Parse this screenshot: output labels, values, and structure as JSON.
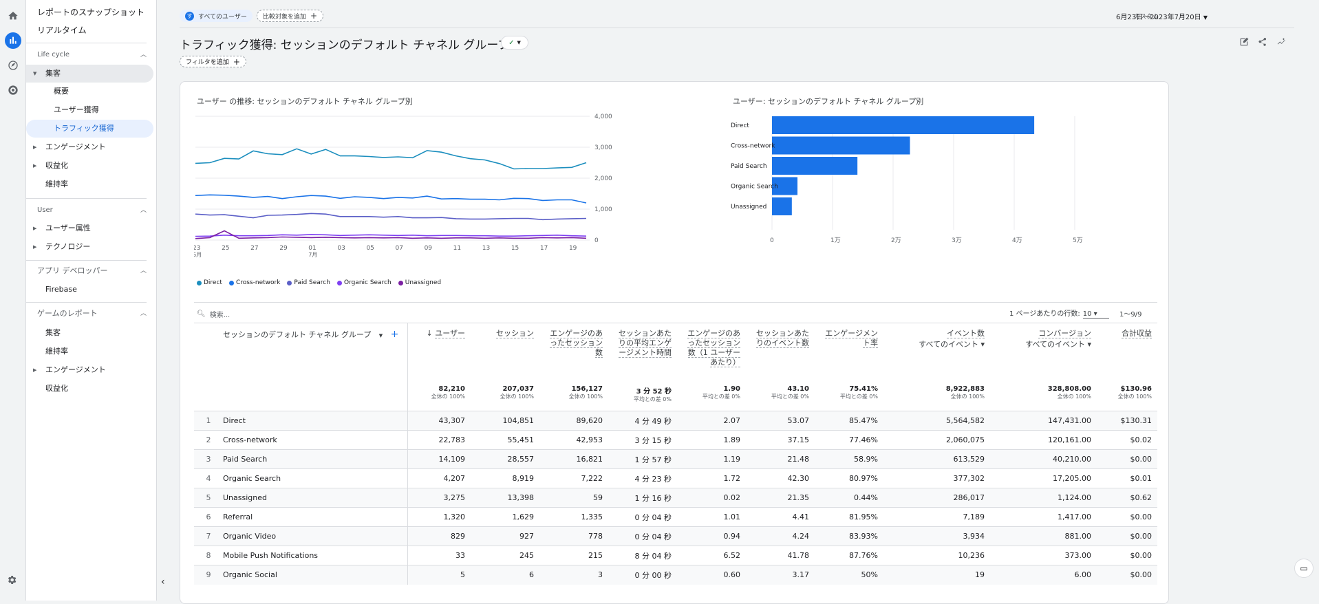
{
  "rail": {
    "icons": [
      "home-icon",
      "reports-icon",
      "explore-icon",
      "advertising-icon"
    ],
    "settings_icon": "gear-icon"
  },
  "sidebar": {
    "top_items": [
      "レポートのスナップショット",
      "リアルタイム"
    ],
    "lifecycle": {
      "title": "Life cycle",
      "acquisition": "集客",
      "sub": [
        "概要",
        "ユーザー獲得",
        "トラフィック獲得"
      ],
      "others": [
        "エンゲージメント",
        "収益化"
      ],
      "retention": "維持率"
    },
    "user": {
      "title": "User",
      "items": [
        "ユーザー属性",
        "テクノロジー"
      ]
    },
    "app_dev": {
      "title": "アプリ デベロッパー",
      "items": [
        "Firebase"
      ]
    },
    "games": {
      "title": "ゲームのレポート",
      "items": [
        "集客",
        "維持率",
        "エンゲージメント",
        "収益化"
      ]
    }
  },
  "header": {
    "chip_users": "すべてのユーザー",
    "chip_users_avatar": "す",
    "chip_compare": "比較対象を追加",
    "date_label": "カスタム",
    "date_value": "6月23日～2023年7月20日",
    "title": "トラフィック獲得: セッションのデフォルト チャネル グループ",
    "filter": "フィルタを追加"
  },
  "charts": {
    "line_title": "ユーザー の推移: セッションのデフォルト チャネル グループ別",
    "bar_title": "ユーザー: セッションのデフォルト チャネル グループ別"
  },
  "chart_data": [
    {
      "type": "line",
      "x": [
        "23",
        "24",
        "25",
        "26",
        "27",
        "28",
        "29",
        "30",
        "01",
        "02",
        "03",
        "04",
        "05",
        "06",
        "07",
        "08",
        "09",
        "10",
        "11",
        "12",
        "13",
        "14",
        "15",
        "16",
        "17",
        "18",
        "19",
        "20"
      ],
      "x_tick_labels": [
        "23",
        "25",
        "27",
        "29",
        "01",
        "03",
        "05",
        "07",
        "09",
        "11",
        "13",
        "15",
        "17",
        "19"
      ],
      "x_tick_sublabels": {
        "23": "6月",
        "01": "7月"
      },
      "ylim": [
        0,
        4000
      ],
      "y_ticks": [
        "4,000",
        "3,000",
        "2,000",
        "1,000",
        "0"
      ],
      "series": [
        {
          "name": "Direct",
          "color": "#1b8ebe",
          "values": [
            2480,
            2500,
            2640,
            2620,
            2880,
            2790,
            2760,
            2950,
            2780,
            2930,
            2720,
            2720,
            2700,
            2670,
            2690,
            2660,
            2890,
            2840,
            2720,
            2630,
            2590,
            2470,
            2300,
            2310,
            2310,
            2330,
            2350,
            2500
          ]
        },
        {
          "name": "Cross-network",
          "color": "#1a73e8",
          "values": [
            1440,
            1460,
            1450,
            1420,
            1380,
            1410,
            1340,
            1400,
            1440,
            1420,
            1350,
            1400,
            1380,
            1340,
            1380,
            1360,
            1420,
            1330,
            1340,
            1320,
            1320,
            1300,
            1350,
            1340,
            1280,
            1300,
            1300,
            1200
          ]
        },
        {
          "name": "Paid Search",
          "color": "#5b5fc7",
          "values": [
            840,
            810,
            820,
            770,
            720,
            800,
            810,
            830,
            860,
            840,
            760,
            760,
            760,
            740,
            760,
            720,
            720,
            730,
            690,
            680,
            680,
            690,
            700,
            700,
            660,
            680,
            690,
            700
          ]
        },
        {
          "name": "Organic Search",
          "color": "#7e3ff2",
          "values": [
            120,
            130,
            160,
            140,
            140,
            150,
            170,
            160,
            180,
            170,
            150,
            160,
            170,
            160,
            150,
            160,
            140,
            150,
            150,
            140,
            140,
            130,
            130,
            140,
            150,
            160,
            140,
            130
          ]
        },
        {
          "name": "Unassigned",
          "color": "#7b1fa2",
          "values": [
            50,
            80,
            300,
            60,
            70,
            80,
            100,
            90,
            80,
            90,
            80,
            70,
            80,
            70,
            80,
            60,
            70,
            60,
            70,
            70,
            60,
            70,
            60,
            60,
            80,
            70,
            80,
            60
          ]
        }
      ]
    },
    {
      "type": "bar",
      "orientation": "horizontal",
      "categories": [
        "Direct",
        "Cross-network",
        "Paid Search",
        "Organic Search",
        "Unassigned"
      ],
      "values": [
        43307,
        22783,
        14109,
        4207,
        3275
      ],
      "xlim": [
        0,
        50000
      ],
      "x_ticks": [
        "0",
        "1万",
        "2万",
        "3万",
        "4万",
        "5万"
      ],
      "color": "#1a73e8",
      "grid": true
    }
  ],
  "table": {
    "search_placeholder": "検索...",
    "rows_per_page_label": "1 ページあたりの行数:",
    "rows_per_page": "10",
    "range": "1～9/9",
    "dimension_header": "セッションのデフォルト チャネル グループ",
    "columns": [
      {
        "label": "ユーザー",
        "sub": ""
      },
      {
        "label": "セッション",
        "sub": ""
      },
      {
        "label": "エンゲージのあったセッション数",
        "sub": ""
      },
      {
        "label": "セッションあたりの平均エンゲージメント時間",
        "sub": ""
      },
      {
        "label": "エンゲージのあったセッション数（1 ユーザーあたり）",
        "sub": ""
      },
      {
        "label": "セッションあたりのイベント数",
        "sub": ""
      },
      {
        "label": "エンゲージメント率",
        "sub": ""
      },
      {
        "label": "イベント数",
        "sub": "すべてのイベント"
      },
      {
        "label": "コンバージョン",
        "sub": "すべてのイベント"
      },
      {
        "label": "合計収益",
        "sub": ""
      }
    ],
    "totals": [
      {
        "v": "82,210",
        "s": "全体の 100%"
      },
      {
        "v": "207,037",
        "s": "全体の 100%"
      },
      {
        "v": "156,127",
        "s": "全体の 100%"
      },
      {
        "v": "3 分 52 秒",
        "s": "平均との差 0%"
      },
      {
        "v": "1.90",
        "s": "平均との差 0%"
      },
      {
        "v": "43.10",
        "s": "平均との差 0%"
      },
      {
        "v": "75.41%",
        "s": "平均との差 0%"
      },
      {
        "v": "8,922,883",
        "s": "全体の 100%"
      },
      {
        "v": "328,808.00",
        "s": "全体の 100%"
      },
      {
        "v": "$130.96",
        "s": "全体の 100%"
      }
    ],
    "rows": [
      {
        "i": "1",
        "name": "Direct",
        "c": [
          "43,307",
          "104,851",
          "89,620",
          "4 分 49 秒",
          "2.07",
          "53.07",
          "85.47%",
          "5,564,582",
          "147,431.00",
          "$130.31"
        ]
      },
      {
        "i": "2",
        "name": "Cross-network",
        "c": [
          "22,783",
          "55,451",
          "42,953",
          "3 分 15 秒",
          "1.89",
          "37.15",
          "77.46%",
          "2,060,075",
          "120,161.00",
          "$0.02"
        ]
      },
      {
        "i": "3",
        "name": "Paid Search",
        "c": [
          "14,109",
          "28,557",
          "16,821",
          "1 分 57 秒",
          "1.19",
          "21.48",
          "58.9%",
          "613,529",
          "40,210.00",
          "$0.00"
        ]
      },
      {
        "i": "4",
        "name": "Organic Search",
        "c": [
          "4,207",
          "8,919",
          "7,222",
          "4 分 23 秒",
          "1.72",
          "42.30",
          "80.97%",
          "377,302",
          "17,205.00",
          "$0.01"
        ]
      },
      {
        "i": "5",
        "name": "Unassigned",
        "c": [
          "3,275",
          "13,398",
          "59",
          "1 分 16 秒",
          "0.02",
          "21.35",
          "0.44%",
          "286,017",
          "1,124.00",
          "$0.62"
        ]
      },
      {
        "i": "6",
        "name": "Referral",
        "c": [
          "1,320",
          "1,629",
          "1,335",
          "0 分 04 秒",
          "1.01",
          "4.41",
          "81.95%",
          "7,189",
          "1,417.00",
          "$0.00"
        ]
      },
      {
        "i": "7",
        "name": "Organic Video",
        "c": [
          "829",
          "927",
          "778",
          "0 分 04 秒",
          "0.94",
          "4.24",
          "83.93%",
          "3,934",
          "881.00",
          "$0.00"
        ]
      },
      {
        "i": "8",
        "name": "Mobile Push Notifications",
        "c": [
          "33",
          "245",
          "215",
          "8 分 04 秒",
          "6.52",
          "41.78",
          "87.76%",
          "10,236",
          "373.00",
          "$0.00"
        ]
      },
      {
        "i": "9",
        "name": "Organic Social",
        "c": [
          "5",
          "6",
          "3",
          "0 分 00 秒",
          "0.60",
          "3.17",
          "50%",
          "19",
          "6.00",
          "$0.00"
        ]
      }
    ]
  }
}
